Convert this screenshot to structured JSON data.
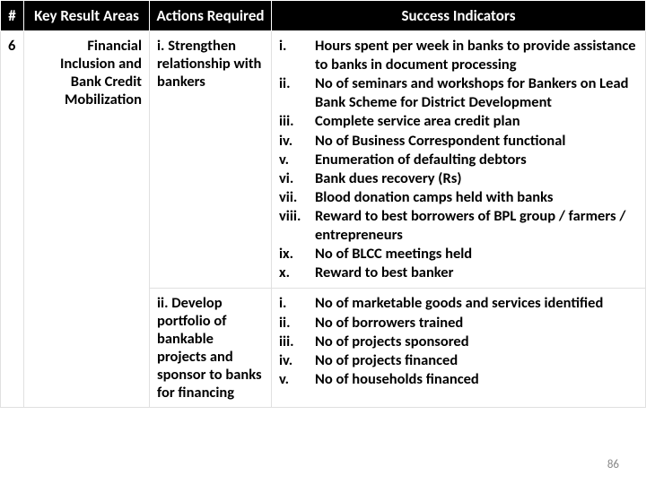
{
  "headers": {
    "num": "#",
    "kra": "Key Result Areas",
    "act": "Actions Required",
    "ind": "Success Indicators"
  },
  "row_num": "6",
  "kra_text": "Financial Inclusion and Bank Credit Mobilization",
  "action1": "i. Strengthen relationship with bankers",
  "action2": "ii. Develop portfolio of bankable projects and sponsor to banks for financing",
  "indicators1": [
    {
      "n": "i.",
      "t": "Hours spent per week in banks to provide assistance to banks in document processing"
    },
    {
      "n": "ii.",
      "t": "No of seminars and workshops for Bankers on Lead Bank Scheme for District Development"
    },
    {
      "n": "iii.",
      "t": "Complete service area credit plan"
    },
    {
      "n": "iv.",
      "t": "No of Business Correspondent functional"
    },
    {
      "n": "v.",
      "t": "Enumeration of defaulting debtors"
    },
    {
      "n": "vi.",
      "t": "Bank dues recovery (Rs)"
    },
    {
      "n": "vii.",
      "t": "Blood donation camps held with banks"
    },
    {
      "n": "viii.",
      "t": "Reward to best borrowers of BPL group / farmers / entrepreneurs"
    },
    {
      "n": "ix.",
      "t": "No of BLCC meetings held"
    },
    {
      "n": "x.",
      "t": "Reward to best banker"
    }
  ],
  "indicators2": [
    {
      "n": "i.",
      "t": "No of marketable goods and services identified"
    },
    {
      "n": "ii.",
      "t": "No of borrowers trained"
    },
    {
      "n": "iii.",
      "t": "No of projects sponsored"
    },
    {
      "n": "iv.",
      "t": "No of projects financed"
    },
    {
      "n": "v.",
      "t": "No of households financed"
    }
  ],
  "page_number": "86"
}
